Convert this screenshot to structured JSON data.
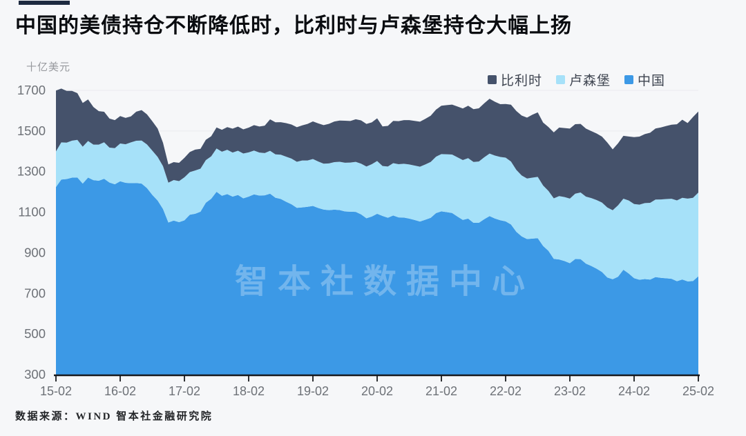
{
  "page": {
    "background": "#f6f7f9"
  },
  "header": {
    "accent_bar_color": "#1d2a40",
    "title": "中国的美债持仓不断降低时，比利时与卢森堡持仓大幅上扬",
    "unit_label": "十亿美元"
  },
  "legend": {
    "items": [
      {
        "id": "belgium",
        "label": "比利时",
        "color": "#45526b"
      },
      {
        "id": "luxembourg",
        "label": "卢森堡",
        "color": "#a6e1f9"
      },
      {
        "id": "china",
        "label": "中国",
        "color": "#3c99e6"
      }
    ]
  },
  "watermark": {
    "text": "智本社数据中心"
  },
  "footer": {
    "source_text": "数据来源：WIND 智本社金融研究院"
  },
  "chart_data": {
    "type": "area",
    "stacked": true,
    "title": "中国的美债持仓不断降低时，比利时与卢森堡持仓大幅上扬",
    "ylabel": "十亿美元",
    "unit": "billion USD",
    "x_frequency": "monthly",
    "x_start_month": "2015-02",
    "x_end_month": "2025-02",
    "x_tick_labels": [
      "15-02",
      "16-02",
      "17-02",
      "18-02",
      "19-02",
      "20-02",
      "21-02",
      "22-02",
      "23-02",
      "24-02",
      "25-02"
    ],
    "ylim": [
      300,
      1700
    ],
    "y_ticks": [
      300,
      500,
      700,
      900,
      1100,
      1300,
      1500,
      1700
    ],
    "grid": "horizontal",
    "legend_position": "top-right",
    "axis_color": "#17191d",
    "grid_color": "#e9eaee",
    "tick_label_color": "#6d7177",
    "stack_order": "bottom_to_top",
    "series": [
      {
        "id": "china",
        "name": "中国",
        "color": "#3c99e6",
        "values": [
          1223.7,
          1261,
          1263.4,
          1270.3,
          1271.2,
          1240.8,
          1270.5,
          1258,
          1254.8,
          1264.5,
          1246.1,
          1237.3,
          1252.3,
          1244.6,
          1242.8,
          1244,
          1240.8,
          1218.8,
          1185.1,
          1157,
          1115.7,
          1049.3,
          1058.4,
          1051.1,
          1059.7,
          1087.5,
          1092.2,
          1102.2,
          1146.5,
          1166.1,
          1200.5,
          1180.8,
          1189.2,
          1176.6,
          1184.9,
          1168.2,
          1176.7,
          1187.7,
          1181.9,
          1183.1,
          1191.2,
          1171,
          1165.1,
          1151.4,
          1138.9,
          1121.5,
          1123.5,
          1126.7,
          1130.9,
          1120.5,
          1113,
          1110.2,
          1112.5,
          1110.4,
          1103.5,
          1102.4,
          1101.7,
          1089.1,
          1069.9,
          1078.6,
          1092.3,
          1081.6,
          1072.8,
          1083.7,
          1074.4,
          1073.4,
          1068.3,
          1061.7,
          1054,
          1063,
          1072.3,
          1095.4,
          1104.2,
          1100.4,
          1096.1,
          1078.4,
          1061.9,
          1068.3,
          1047.5,
          1047.6,
          1065.4,
          1080.8,
          1068.9,
          1060.1,
          1054.8,
          1039.6,
          1003.4,
          980.8,
          967.8,
          970,
          971.8,
          933.6,
          909.6,
          870.2,
          867.1,
          859.4,
          848.8,
          869.3,
          868.9,
          846.7,
          835.4,
          821.8,
          805.4,
          778.1,
          769.6,
          782,
          816.3,
          797.7,
          775,
          767.4,
          770.8,
          768.3,
          780.2,
          776.5,
          774.6,
          772,
          760.1,
          768.6,
          759,
          760.8,
          784.3
        ]
      },
      {
        "id": "luxembourg",
        "name": "卢森堡",
        "color": "#a6e1f9",
        "values": [
          175.4,
          183,
          179,
          182,
          185,
          182,
          180,
          175,
          178,
          180,
          172,
          178,
          186,
          190,
          201,
          208,
          212,
          215,
          218,
          215,
          211,
          196,
          200,
          202,
          212,
          210,
          213,
          212,
          210,
          209,
          213,
          217,
          218,
          217,
          217.6,
          221,
          218,
          216,
          212,
          208,
          211,
          214,
          218,
          222,
          225,
          227,
          231,
          228,
          231,
          229,
          226,
          230,
          234,
          238,
          240,
          242,
          246,
          250,
          255,
          258,
          260,
          246,
          252,
          258,
          262,
          265,
          267,
          268,
          270,
          272,
          275,
          278,
          282,
          285,
          288,
          292,
          295,
          298,
          300,
          302,
          305,
          308,
          310,
          312,
          314,
          310,
          305,
          300,
          298,
          300,
          302,
          298,
          295,
          298,
          312,
          315,
          318,
          322,
          328,
          330,
          334,
          338,
          342,
          345,
          340,
          352,
          350,
          360,
          365,
          370,
          374,
          378,
          382,
          386,
          390,
          394,
          398,
          402,
          408,
          410,
          412.5
        ]
      },
      {
        "id": "belgium",
        "name": "比利时",
        "color": "#45526b",
        "values": [
          300,
          265,
          255,
          245,
          230,
          215,
          205,
          185,
          165,
          150,
          143,
          138,
          135,
          130,
          128,
          143,
          150,
          148,
          145,
          140,
          115,
          90,
          88,
          90,
          96,
          99,
          103,
          98,
          100,
          99,
          104,
          108,
          112,
          118,
          119,
          119,
          122,
          125,
          128,
          135,
          155,
          158,
          160,
          165,
          168,
          170,
          173,
          180,
          185,
          188,
          190,
          195,
          200,
          203,
          207,
          205,
          210,
          213,
          210,
          206,
          210,
          195,
          200,
          208,
          212,
          215,
          218,
          220,
          222,
          225,
          228,
          232,
          238,
          242,
          246,
          250,
          254,
          258,
          260,
          262,
          266,
          270,
          265,
          260,
          264,
          280,
          290,
          295,
          300,
          310,
          318,
          310,
          315,
          325,
          338,
          340,
          345,
          342,
          338,
          335,
          330,
          328,
          325,
          320,
          300,
          305,
          310,
          315,
          330,
          335,
          340,
          345,
          350,
          355,
          360,
          365,
          375,
          385,
          372,
          398,
          399
        ]
      }
    ]
  }
}
